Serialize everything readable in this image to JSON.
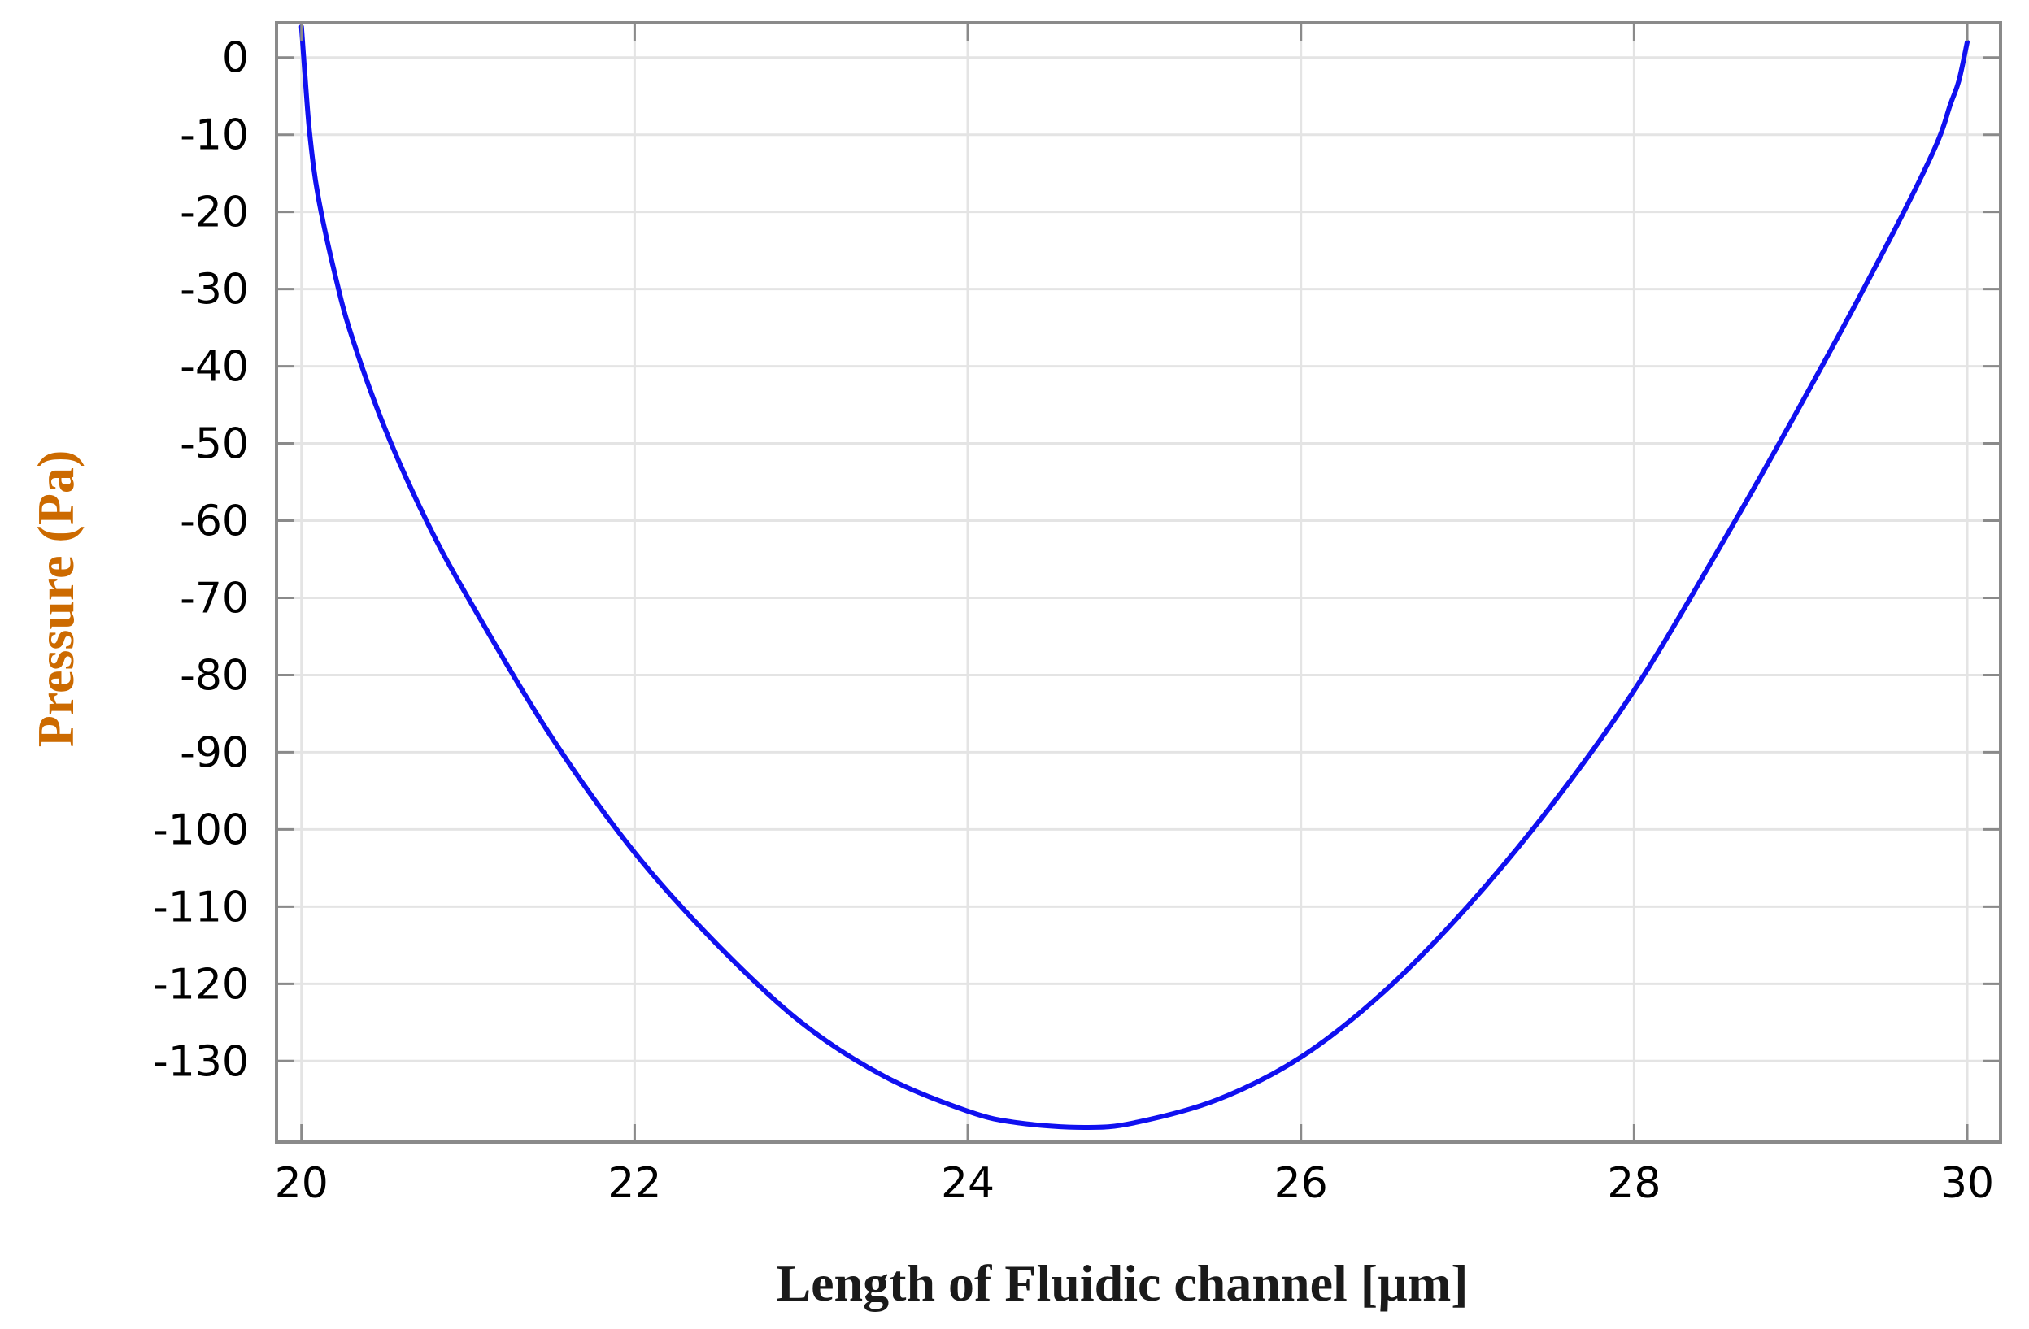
{
  "colors": {
    "line": "#1010f0",
    "grid": "#e4e4e4",
    "frame": "#8a8a8a",
    "xlabel": "#1a1a1a",
    "ylabel": "#cc6a00",
    "background": "#ffffff"
  },
  "chart_data": {
    "type": "line",
    "title": "",
    "xlabel": "Length of Fluidic channel [µm]",
    "ylabel": "Pressure (Pa)",
    "xlim": [
      19.85,
      30.2
    ],
    "ylim": [
      -140.5,
      4.5
    ],
    "xticks": [
      20,
      22,
      24,
      26,
      28,
      30
    ],
    "xtick_labels": [
      "20",
      "22",
      "24",
      "26",
      "28",
      "30"
    ],
    "yticks": [
      0,
      -10,
      -20,
      -30,
      -40,
      -50,
      -60,
      -70,
      -80,
      -90,
      -100,
      -110,
      -120,
      -130
    ],
    "ytick_labels": [
      "0",
      "-10",
      "-20",
      "-30",
      "-40",
      "-50",
      "-60",
      "-70",
      "-80",
      "-90",
      "-100",
      "-110",
      "-120",
      "-130"
    ],
    "grid": true,
    "legend": "none",
    "series": [
      {
        "x": [
          20.0,
          20.02,
          20.05,
          20.1,
          20.2,
          20.3,
          20.5,
          20.75,
          21.0,
          21.5,
          22.0,
          22.5,
          23.0,
          23.5,
          24.0,
          24.3,
          24.7,
          25.0,
          25.5,
          26.0,
          26.5,
          27.0,
          27.5,
          28.0,
          28.5,
          29.0,
          29.5,
          29.8,
          29.9,
          29.95,
          30.0
        ],
        "y": [
          4,
          -2,
          -10,
          -18,
          -28,
          -36,
          -48,
          -60,
          -70,
          -88,
          -103,
          -115,
          -125,
          -132,
          -136.5,
          -138,
          -138.6,
          -138,
          -135,
          -129.5,
          -121,
          -110,
          -97,
          -82,
          -64,
          -45,
          -25,
          -12,
          -6,
          -3,
          2
        ]
      }
    ]
  }
}
